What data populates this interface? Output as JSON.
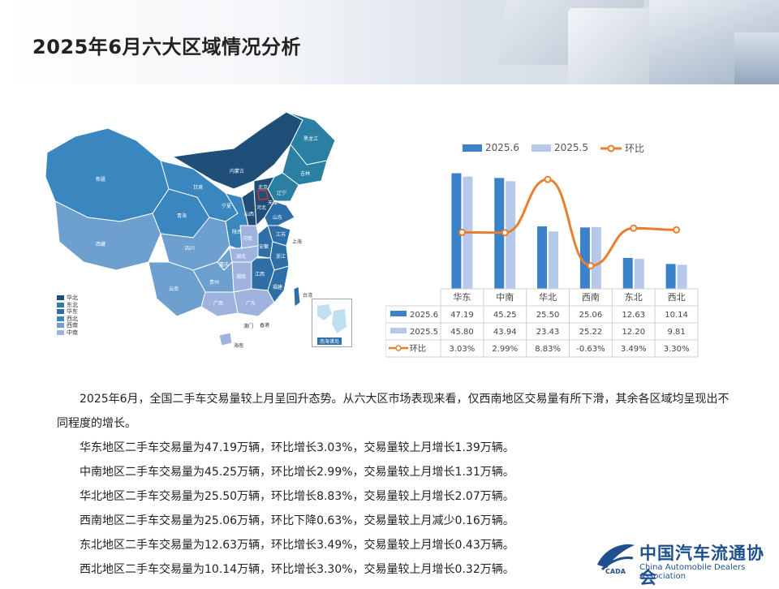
{
  "title": "2025年6月六大区域情况分析",
  "map": {
    "legend": [
      {
        "label": "华北",
        "color": "#1f4e79"
      },
      {
        "label": "东北",
        "color": "#2a7fa3"
      },
      {
        "label": "华东",
        "color": "#2f6fa8"
      },
      {
        "label": "西北",
        "color": "#3a86bf"
      },
      {
        "label": "西南",
        "color": "#6ea0cf"
      },
      {
        "label": "中南",
        "color": "#9fb3df"
      }
    ],
    "inset_label": "南海诸岛",
    "region_labels": [
      "黑龙江",
      "吉林",
      "辽宁",
      "内蒙古",
      "新疆",
      "西藏",
      "青海",
      "甘肃",
      "宁夏",
      "陕西",
      "山西",
      "河北",
      "北京",
      "天津",
      "山东",
      "河南",
      "江苏",
      "上海",
      "浙江",
      "安徽",
      "湖北",
      "湖南",
      "江西",
      "福建",
      "台湾",
      "广东",
      "广西",
      "海南",
      "四川",
      "重庆",
      "贵州",
      "云南",
      "香港",
      "澳门"
    ]
  },
  "chart_data": {
    "type": "bar",
    "categories": [
      "华东",
      "中南",
      "华北",
      "西南",
      "东北",
      "西北"
    ],
    "series": [
      {
        "name": "2025.6",
        "type": "bar",
        "values": [
          47.19,
          45.25,
          25.5,
          25.06,
          12.63,
          10.14
        ],
        "color": "#3c82c9"
      },
      {
        "name": "2025.5",
        "type": "bar",
        "values": [
          45.8,
          43.94,
          23.43,
          25.22,
          12.2,
          9.81
        ],
        "color": "#b7c9ea"
      },
      {
        "name": "环比",
        "type": "line",
        "values": [
          3.03,
          2.99,
          8.83,
          -0.63,
          3.49,
          3.3
        ],
        "color": "#e97f2e",
        "unit": "%"
      }
    ],
    "table": [
      [
        "47.19",
        "45.25",
        "25.50",
        "25.06",
        "12.63",
        "10.14"
      ],
      [
        "45.80",
        "43.94",
        "23.43",
        "25.22",
        "12.20",
        "9.81"
      ],
      [
        "3.03%",
        "2.99%",
        "8.83%",
        "-0.63%",
        "3.49%",
        "3.30%"
      ]
    ],
    "legend_position": "top"
  },
  "text": {
    "intro": "2025年6月，全国二手车交易量较上月呈回升态势。从六大区市场表现来看，仅西南地区交易量有所下滑，其余各区域均呈现出不同程度的增长。",
    "lines": [
      "华东地区二手车交易量为47.19万辆，环比增长3.03%，交易量较上月增长1.39万辆。",
      "中南地区二手车交易量为45.25万辆，环比增长2.99%，交易量较上月增长1.31万辆。",
      "华北地区二手车交易量为25.50万辆，环比增长8.83%，交易量较上月增长2.07万辆。",
      "西南地区二手车交易量为25.06万辆，环比下降0.63%，交易量较上月减少0.16万辆。",
      "东北地区二手车交易量为12.63万辆，环比增长3.49%，交易量较上月增长0.43万辆。",
      "西北地区二手车交易量为10.14万辆，环比增长3.30%，交易量较上月增长0.32万辆。"
    ]
  },
  "logo": {
    "cn": "中国汽车流通协会",
    "en": "China Automobile Dealers Association",
    "mark_text": "CADA"
  }
}
